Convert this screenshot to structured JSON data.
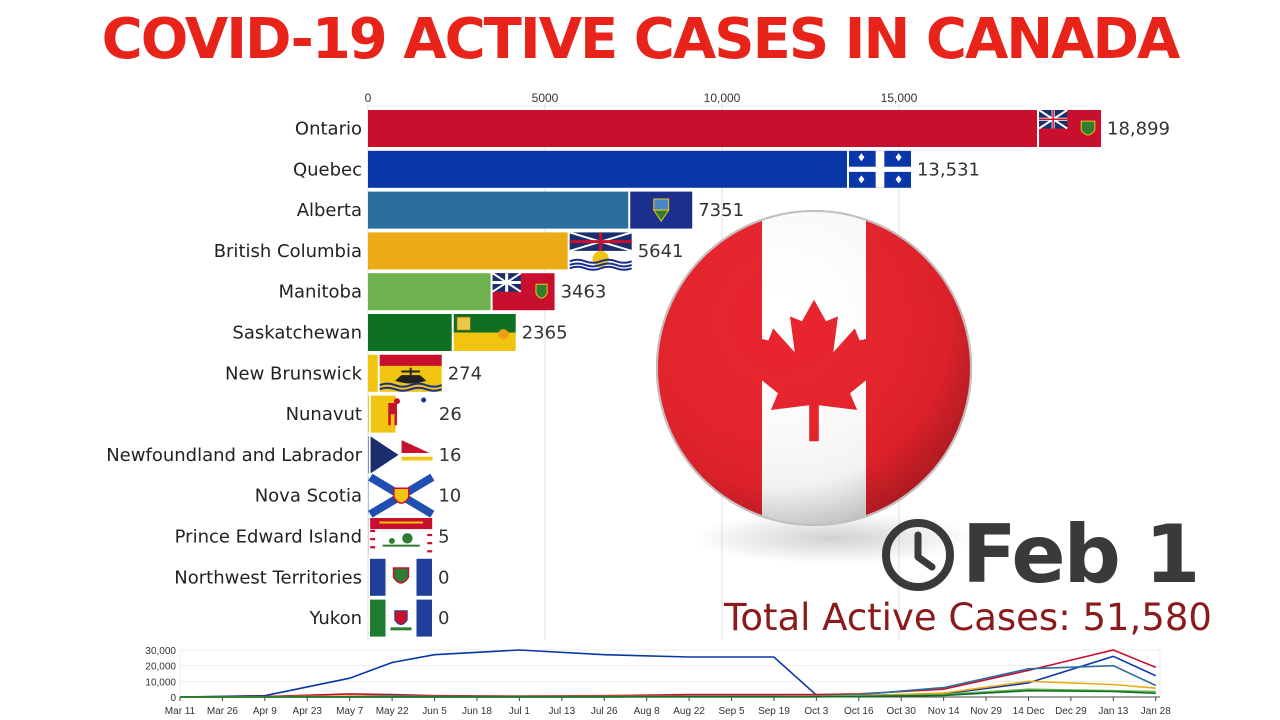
{
  "page": {
    "title": "COVID-19 ACTIVE CASES IN CANADA",
    "date": "Feb 1",
    "total_label": "Total Active Cases: 51,580"
  },
  "colors": {
    "title": "#e8231a",
    "ontario": "#c8102e",
    "quebec": "#0a37a8",
    "alberta": "#2b6f9e",
    "british_columbia": "#eaab16",
    "manitoba": "#6db24f",
    "saskatchewan": "#0f6f22",
    "new_brunswick": "#f1c40f"
  },
  "icons": [
    "clock-icon",
    "canada-flag-icon",
    "province-flag-icon"
  ],
  "chart_data": [
    {
      "type": "bar",
      "orientation": "horizontal",
      "title": "COVID-19 ACTIVE CASES IN CANADA",
      "x_ticks": [
        "0",
        "5000",
        "10,000",
        "15,000"
      ],
      "x_tick_values": [
        0,
        5000,
        10000,
        15000
      ],
      "xlim": [
        0,
        20000
      ],
      "grid": true,
      "categories": [
        "Ontario",
        "Quebec",
        "Alberta",
        "British Columbia",
        "Manitoba",
        "Saskatchewan",
        "New Brunswick",
        "Nunavut",
        "Newfoundland and Labrador",
        "Nova Scotia",
        "Prince Edward Island",
        "Northwest Territories",
        "Yukon"
      ],
      "values": [
        18899,
        13531,
        7351,
        5641,
        3463,
        2365,
        274,
        26,
        16,
        10,
        5,
        0,
        0
      ],
      "value_labels": [
        "18,899",
        "13,531",
        "7351",
        "5641",
        "3463",
        "2365",
        "274",
        "26",
        "16",
        "10",
        "5",
        "0",
        "0"
      ],
      "bar_colors": [
        "#c8102e",
        "#0a37a8",
        "#2b6f9e",
        "#eaab16",
        "#6db24f",
        "#0f6f22",
        "#f1c40f",
        "#f1c40f",
        "#1f3f7a",
        "#1f4fb0",
        "#c8102e",
        "#1f3f9a",
        "#1e7b2f"
      ],
      "flags": [
        "ontario-flag",
        "quebec-flag",
        "alberta-flag",
        "british-columbia-flag",
        "manitoba-flag",
        "saskatchewan-flag",
        "new-brunswick-flag",
        "nunavut-flag",
        "newfoundland-flag",
        "nova-scotia-flag",
        "pei-flag",
        "northwest-territories-flag",
        "yukon-flag"
      ]
    },
    {
      "type": "line",
      "title": "",
      "y_ticks": [
        "0",
        "10,000",
        "20,000",
        "30,000"
      ],
      "y_tick_values": [
        0,
        10000,
        20000,
        30000
      ],
      "ylim": [
        0,
        30000
      ],
      "x_ticks": [
        "Mar 11",
        "Mar 26",
        "Apr 9",
        "Apr 23",
        "May 7",
        "May 22",
        "Jun 5",
        "Jun 18",
        "Jul 1",
        "Jul 13",
        "Jul 26",
        "Aug 8",
        "Aug 22",
        "Sep 5",
        "Sep 19",
        "Oct 3",
        "Oct 16",
        "Oct 30",
        "Nov 14",
        "Nov 29",
        "14 Dec",
        "Dec 29",
        "Jan 13",
        "Jan 28"
      ],
      "x": [
        0,
        2,
        4,
        5,
        6,
        8,
        10,
        12,
        14,
        15,
        16,
        18,
        20,
        22,
        23
      ],
      "series": [
        {
          "color": "#0a37a8",
          "values": [
            0,
            800,
            12000,
            22000,
            27000,
            30000,
            27000,
            25500,
            25500,
            1200,
            1000,
            2000,
            9000,
            26000,
            13531
          ]
        },
        {
          "color": "#c8102e",
          "values": [
            0,
            300,
            2000,
            1500,
            800,
            600,
            800,
            1500,
            1500,
            1500,
            2000,
            5000,
            17000,
            30000,
            18899
          ]
        },
        {
          "color": "#2b6f9e",
          "values": [
            0,
            100,
            500,
            800,
            300,
            200,
            300,
            500,
            500,
            600,
            1500,
            6000,
            18000,
            20000,
            7351
          ]
        },
        {
          "color": "#eaab16",
          "values": [
            0,
            100,
            500,
            300,
            200,
            200,
            300,
            300,
            300,
            400,
            800,
            2500,
            10000,
            8000,
            5641
          ]
        },
        {
          "color": "#6db24f",
          "values": [
            0,
            0,
            50,
            50,
            50,
            50,
            50,
            100,
            100,
            200,
            500,
            1500,
            5000,
            4000,
            3463
          ]
        },
        {
          "color": "#0f6f22",
          "values": [
            0,
            0,
            50,
            50,
            50,
            50,
            50,
            100,
            100,
            100,
            300,
            1000,
            4000,
            3500,
            2365
          ]
        }
      ]
    }
  ]
}
